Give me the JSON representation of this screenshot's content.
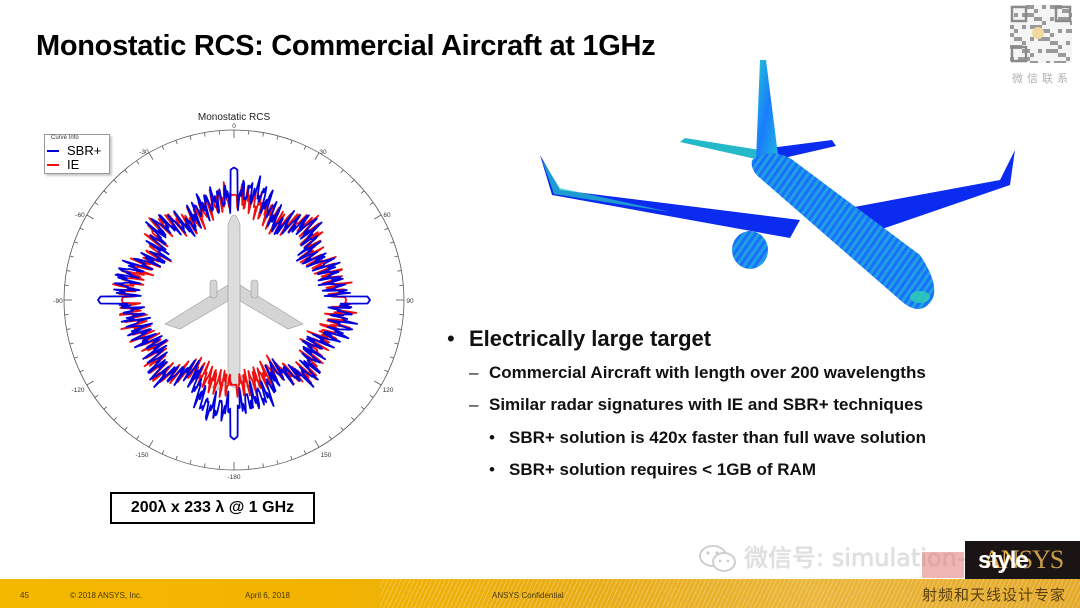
{
  "slide": {
    "title": "Monostatic RCS: Commercial Aircraft at 1GHz",
    "dimension_box": "200λ x 233 λ @ 1 GHz"
  },
  "polar_chart": {
    "title": "Monostatic RCS",
    "legend_title": "Curve Info",
    "legend": [
      {
        "label": "SBR+",
        "color": "#0000dd"
      },
      {
        "label": "IE",
        "color": "#ee1111"
      }
    ],
    "angle_labels": {
      "a0": "0",
      "a30": "30",
      "a60": "60",
      "a90": "90",
      "a120": "120",
      "a150": "150",
      "a180": "-180",
      "an150": "-150",
      "an120": "-120",
      "an90": "-90",
      "an60": "-60",
      "an30": "-30"
    }
  },
  "chart_data": {
    "type": "polar-line",
    "title": "Monostatic RCS",
    "theta_ticks_deg": [
      0,
      30,
      60,
      90,
      120,
      150,
      -180,
      -150,
      -120,
      -90,
      -60,
      -30
    ],
    "legend": {
      "title": "Curve Info",
      "position": "top-left",
      "entries": [
        "SBR+",
        "IE"
      ]
    },
    "series": [
      {
        "name": "SBR+",
        "color": "#0000dd",
        "description": "Blue trace; strong specular spikes at 0, ±90 and 180 deg; noisy lobes elsewhere",
        "theta_deg": [
          0,
          30,
          45,
          60,
          90,
          120,
          135,
          150,
          180,
          -150,
          -135,
          -120,
          -90,
          -60,
          -45,
          -30
        ],
        "r_relative": [
          0.78,
          0.5,
          0.62,
          0.5,
          0.8,
          0.52,
          0.62,
          0.47,
          0.82,
          0.47,
          0.62,
          0.52,
          0.8,
          0.5,
          0.62,
          0.5
        ]
      },
      {
        "name": "IE",
        "color": "#ee1111",
        "description": "Red trace; closely tracks SBR+ with slightly lower nose/tail peaks",
        "theta_deg": [
          0,
          30,
          45,
          60,
          90,
          120,
          135,
          150,
          180,
          -150,
          -135,
          -120,
          -90,
          -60,
          -45,
          -30
        ],
        "r_relative": [
          0.62,
          0.52,
          0.64,
          0.52,
          0.66,
          0.54,
          0.62,
          0.47,
          0.5,
          0.47,
          0.62,
          0.54,
          0.66,
          0.52,
          0.64,
          0.52
        ]
      }
    ]
  },
  "bullets": [
    {
      "level": 1,
      "marker": "•",
      "text": "Electrically large target"
    },
    {
      "level": 2,
      "marker": "–",
      "text": "Commercial Aircraft with length over 200 wavelengths"
    },
    {
      "level": 2,
      "marker": "–",
      "text": "Similar radar signatures with IE and SBR+ techniques"
    },
    {
      "level": 3,
      "marker": "•",
      "text": "SBR+ solution is 420x faster than full wave solution"
    },
    {
      "level": 3,
      "marker": "•",
      "text": "SBR+ solution requires < 1GB of RAM"
    }
  ],
  "footer": {
    "page_number": "45",
    "copyright": "© 2018 ANSYS, Inc.",
    "date": "April 6, 2018",
    "confidential": "ANSYS Confidential"
  },
  "overlays": {
    "qr_caption": "微信联系",
    "watermark_text": "微信号: simulation-style",
    "logo_text_a": "AN",
    "logo_text_b": "SYS",
    "logo_overlay": "style",
    "brand_cn": "射频和天线设计专家"
  },
  "colors": {
    "sbr": "#0000dd",
    "ie": "#ee1111",
    "footer_gold": "#f2b300",
    "aircraft_mesh_blue": "#0a2cff",
    "aircraft_mesh_cyan": "#1fd0c8"
  }
}
